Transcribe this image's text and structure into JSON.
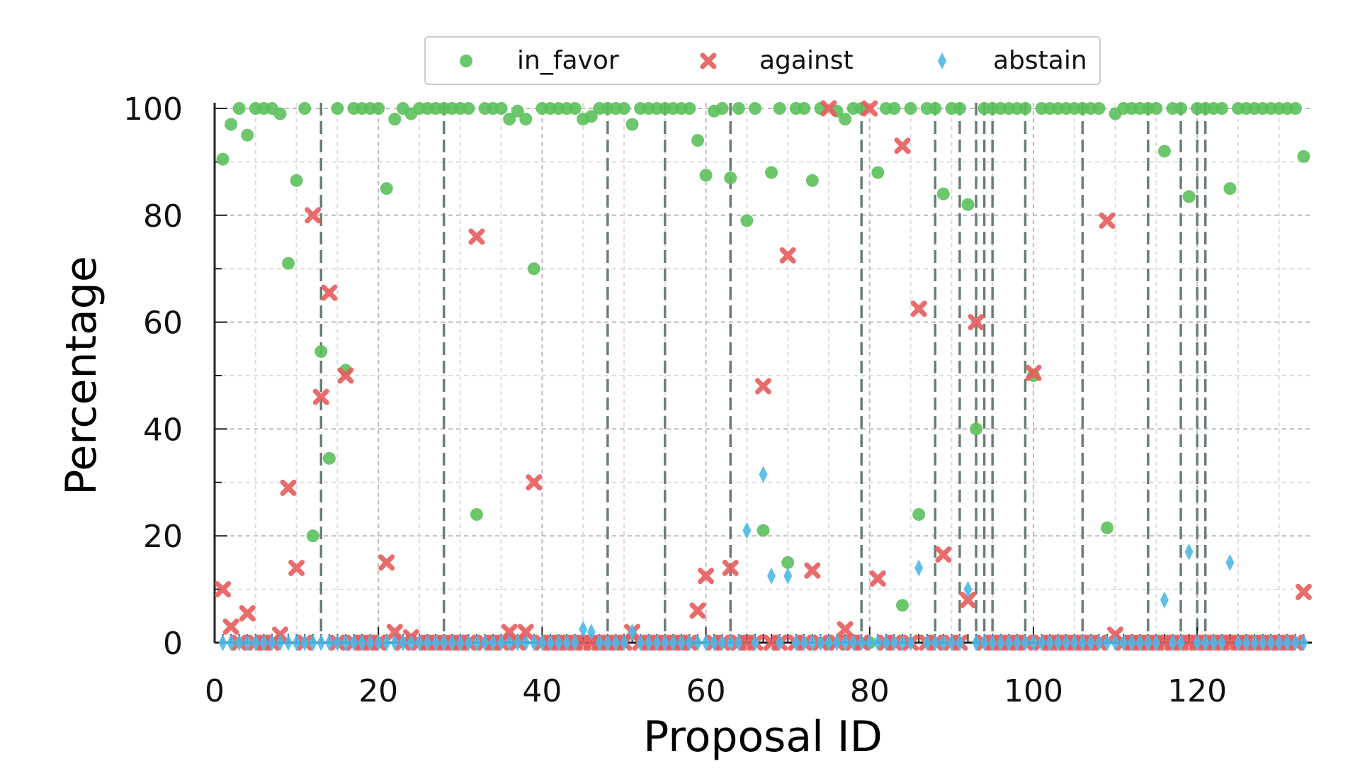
{
  "chart_data": {
    "type": "scatter",
    "title": "",
    "xlabel": "Proposal ID",
    "ylabel": "Percentage",
    "xlim": [
      0,
      134
    ],
    "ylim": [
      0,
      100
    ],
    "xticks": [
      0,
      20,
      40,
      60,
      80,
      100,
      120
    ],
    "yticks": [
      0,
      20,
      40,
      60,
      80,
      100
    ],
    "grid": true,
    "legend_position": "top-center",
    "highlighted_proposals": [
      13,
      28,
      48,
      55,
      63,
      79,
      88,
      91,
      93,
      94,
      95,
      99,
      106,
      114,
      118,
      120,
      121
    ],
    "series": [
      {
        "name": "in_favor",
        "marker": "circle",
        "color": "#5cc05c",
        "y": [
          90.5,
          97,
          100,
          95,
          100,
          100,
          100,
          99,
          71,
          86.5,
          100,
          20,
          54.5,
          34.5,
          100,
          51,
          100,
          100,
          100,
          100,
          85,
          98,
          100,
          99,
          100,
          100,
          100,
          100,
          100,
          100,
          100,
          24,
          100,
          100,
          100,
          98,
          99.5,
          98,
          70,
          100,
          100,
          100,
          100,
          100,
          98,
          98.5,
          100,
          100,
          100,
          100,
          97,
          100,
          100,
          100,
          100,
          100,
          100,
          100,
          94,
          87.5,
          99.5,
          100,
          87,
          100,
          79,
          100,
          21,
          88,
          100,
          15,
          100,
          100,
          86.5,
          100,
          0,
          99.5,
          98,
          100,
          100,
          0,
          88,
          100,
          100,
          7,
          100,
          24,
          100,
          100,
          84,
          100,
          100,
          82,
          40,
          100,
          100,
          100,
          100,
          100,
          100,
          50,
          100,
          100,
          100,
          100,
          100,
          100,
          100,
          100,
          21.5,
          99,
          100,
          100,
          100,
          100,
          100,
          92,
          100,
          100,
          83.5,
          100,
          100,
          100,
          100,
          85,
          100,
          100,
          100,
          100,
          100,
          100,
          100,
          100,
          91
        ]
      },
      {
        "name": "against",
        "marker": "x",
        "color": "#e85c5c",
        "y": [
          10,
          3,
          0,
          5.5,
          0,
          0,
          0,
          1.5,
          29,
          14,
          0,
          80,
          46,
          65.5,
          0,
          50,
          0,
          0,
          0,
          0,
          15,
          2,
          0,
          1,
          0,
          0,
          0,
          0,
          0,
          0,
          0,
          76,
          0,
          0,
          0,
          2,
          0,
          2,
          30,
          0,
          0,
          0,
          0,
          0,
          0,
          0,
          0,
          0,
          0,
          0,
          2,
          0,
          0,
          0,
          0,
          0,
          0,
          0,
          6,
          12.5,
          0,
          0,
          14,
          0,
          0,
          0,
          48,
          0,
          0,
          72.5,
          0,
          0,
          13.5,
          0,
          100,
          0,
          2.5,
          0,
          0,
          100,
          12,
          0,
          0,
          93,
          0,
          62.5,
          0,
          0,
          16.5,
          0,
          0,
          8,
          60,
          0,
          0,
          0,
          0,
          0,
          0,
          50.5,
          0,
          0,
          0,
          0,
          0,
          0,
          0,
          0,
          79,
          1.5,
          0,
          0,
          0,
          0,
          0,
          0,
          0,
          0,
          0,
          0,
          0,
          0,
          0,
          0,
          0,
          0,
          0,
          0,
          0,
          0,
          0,
          0,
          9.5
        ]
      },
      {
        "name": "abstain",
        "marker": "diamond",
        "color": "#4db8e8",
        "y": [
          0,
          0,
          0,
          0,
          0,
          0,
          0,
          0,
          0,
          0,
          0,
          0,
          0,
          0,
          0,
          0,
          0,
          0,
          0,
          0,
          0,
          0,
          0,
          0,
          0,
          0,
          0,
          0,
          0,
          0,
          0,
          0,
          0,
          0,
          0,
          0,
          0,
          0,
          0,
          0,
          0,
          0,
          0,
          0,
          2.5,
          2,
          0,
          0,
          0,
          0,
          2,
          0,
          0,
          0,
          0,
          0,
          0,
          0,
          0,
          0,
          0,
          0,
          0,
          0,
          21,
          0,
          31.5,
          12.5,
          0,
          12.5,
          0,
          0,
          0,
          0,
          0,
          0,
          0,
          0,
          0,
          0,
          0,
          0,
          0,
          0,
          0,
          14,
          0,
          0,
          0,
          0,
          0,
          10,
          0,
          0,
          0,
          0,
          0,
          0,
          0,
          0,
          0,
          0,
          0,
          0,
          0,
          0,
          0,
          0,
          0,
          0,
          0,
          0,
          0,
          0,
          0,
          8,
          0,
          0,
          17,
          0,
          0,
          0,
          0,
          15,
          0,
          0,
          0,
          0,
          0,
          0,
          0,
          0,
          0
        ]
      }
    ]
  }
}
